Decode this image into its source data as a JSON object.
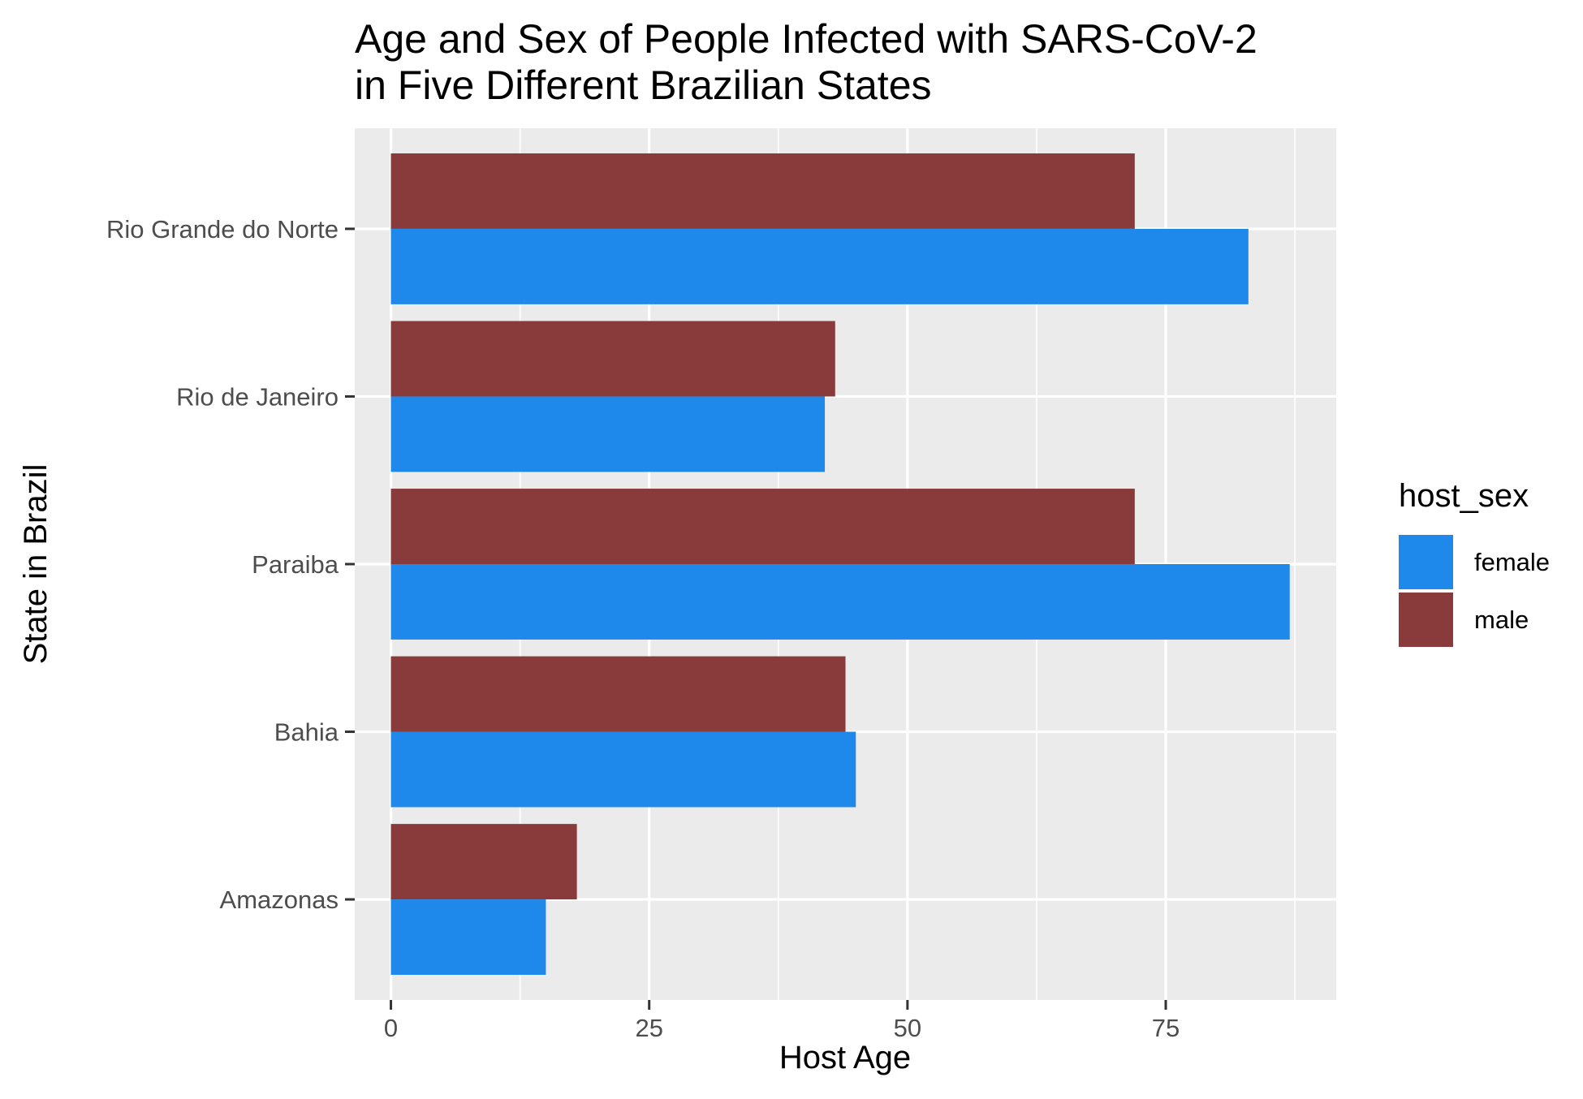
{
  "chart_data": {
    "type": "bar",
    "orientation": "horizontal",
    "position": "dodge",
    "title_lines": [
      "Age and Sex of People Infected with SARS-CoV-2",
      "in Five Different Brazilian States"
    ],
    "xlabel": "Host Age",
    "ylabel": "State in Brazil",
    "xlim": [
      -3.5,
      91.5
    ],
    "x_ticks": [
      0,
      25,
      50,
      75
    ],
    "x_tick_labels": [
      "0",
      "25",
      "50",
      "75"
    ],
    "x_minor_ticks": [
      12.5,
      37.5,
      62.5,
      87.5
    ],
    "categories": [
      "Amazonas",
      "Bahia",
      "Paraiba",
      "Rio de Janeiro",
      "Rio Grande do Norte"
    ],
    "series": [
      {
        "name": "female",
        "color": "#1E88EB",
        "values": [
          15,
          45,
          87,
          42,
          83
        ]
      },
      {
        "name": "male",
        "color": "#893A3B",
        "values": [
          18,
          44,
          72,
          43,
          72
        ]
      }
    ],
    "legend": {
      "title": "host_sex",
      "position": "right",
      "items": [
        "female",
        "male"
      ]
    },
    "grid": true,
    "panel_background": "#EBEBEB",
    "grid_color": "#FFFFFF"
  }
}
